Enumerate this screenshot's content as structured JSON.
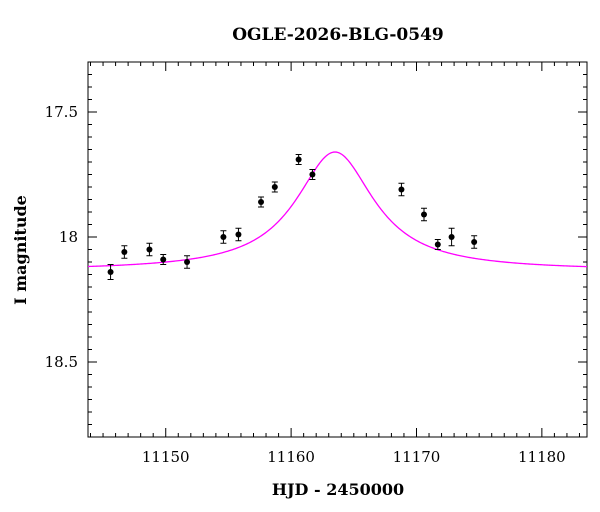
{
  "chart_data": {
    "type": "scatter",
    "title": "OGLE-2026-BLG-0549",
    "xlabel": "HJD - 2450000",
    "ylabel": "I magnitude",
    "xlim": [
      11143.8,
      11183.6
    ],
    "ylim": [
      18.8,
      17.3
    ],
    "y_inverted": true,
    "x_major_ticks": [
      11150,
      11160,
      11170,
      11180
    ],
    "x_minor_step": 1,
    "y_major_ticks": [
      17.5,
      18,
      18.5
    ],
    "y_minor_step": 0.05,
    "x_tick_labels": [
      "11150",
      "11160",
      "11170",
      "11180"
    ],
    "y_tick_labels": [
      "17.5",
      "18",
      "18.5"
    ],
    "grid": false,
    "legend": "none",
    "series": [
      {
        "kind": "points-with-errorbars",
        "color": "#000000",
        "x": [
          11145.6,
          11146.7,
          11148.7,
          11149.8,
          11151.7,
          11154.6,
          11155.8,
          11157.6,
          11158.7,
          11160.6,
          11161.7,
          11168.8,
          11170.6,
          11171.7,
          11172.8,
          11174.6
        ],
        "y": [
          18.14,
          18.06,
          18.05,
          18.09,
          18.1,
          18.0,
          17.99,
          17.86,
          17.8,
          17.69,
          17.75,
          17.81,
          17.91,
          18.03,
          18.0,
          18.02
        ],
        "yerr": [
          0.03,
          0.025,
          0.025,
          0.02,
          0.025,
          0.025,
          0.025,
          0.02,
          0.02,
          0.02,
          0.02,
          0.025,
          0.025,
          0.02,
          0.035,
          0.025
        ]
      },
      {
        "kind": "model-curve",
        "color": "#ff00ff",
        "peak_x": 11163.5,
        "peak_y": 17.66,
        "baseline_y": 18.135,
        "tau": 3.8
      }
    ]
  }
}
